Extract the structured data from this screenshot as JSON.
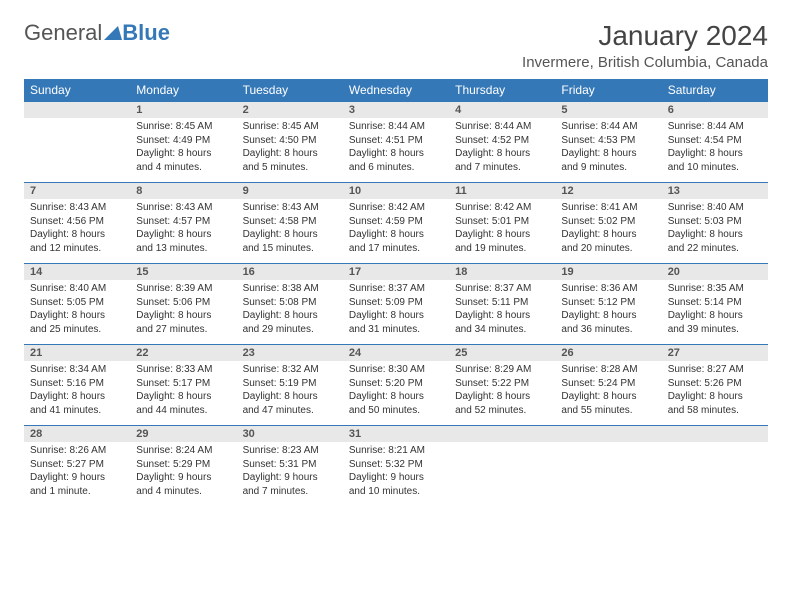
{
  "brand": {
    "part1": "General",
    "part2": "Blue"
  },
  "title": "January 2024",
  "location": "Invermere, British Columbia, Canada",
  "colors": {
    "accent": "#3478b8",
    "header_bg": "#3478b8",
    "daynum_bg": "#e8e8e8",
    "text": "#333333",
    "page_bg": "#ffffff"
  },
  "day_headers": [
    "Sunday",
    "Monday",
    "Tuesday",
    "Wednesday",
    "Thursday",
    "Friday",
    "Saturday"
  ],
  "weeks": [
    {
      "nums": [
        "",
        "1",
        "2",
        "3",
        "4",
        "5",
        "6"
      ],
      "cells": [
        null,
        {
          "sunrise": "Sunrise: 8:45 AM",
          "sunset": "Sunset: 4:49 PM",
          "daylight1": "Daylight: 8 hours",
          "daylight2": "and 4 minutes."
        },
        {
          "sunrise": "Sunrise: 8:45 AM",
          "sunset": "Sunset: 4:50 PM",
          "daylight1": "Daylight: 8 hours",
          "daylight2": "and 5 minutes."
        },
        {
          "sunrise": "Sunrise: 8:44 AM",
          "sunset": "Sunset: 4:51 PM",
          "daylight1": "Daylight: 8 hours",
          "daylight2": "and 6 minutes."
        },
        {
          "sunrise": "Sunrise: 8:44 AM",
          "sunset": "Sunset: 4:52 PM",
          "daylight1": "Daylight: 8 hours",
          "daylight2": "and 7 minutes."
        },
        {
          "sunrise": "Sunrise: 8:44 AM",
          "sunset": "Sunset: 4:53 PM",
          "daylight1": "Daylight: 8 hours",
          "daylight2": "and 9 minutes."
        },
        {
          "sunrise": "Sunrise: 8:44 AM",
          "sunset": "Sunset: 4:54 PM",
          "daylight1": "Daylight: 8 hours",
          "daylight2": "and 10 minutes."
        }
      ]
    },
    {
      "nums": [
        "7",
        "8",
        "9",
        "10",
        "11",
        "12",
        "13"
      ],
      "cells": [
        {
          "sunrise": "Sunrise: 8:43 AM",
          "sunset": "Sunset: 4:56 PM",
          "daylight1": "Daylight: 8 hours",
          "daylight2": "and 12 minutes."
        },
        {
          "sunrise": "Sunrise: 8:43 AM",
          "sunset": "Sunset: 4:57 PM",
          "daylight1": "Daylight: 8 hours",
          "daylight2": "and 13 minutes."
        },
        {
          "sunrise": "Sunrise: 8:43 AM",
          "sunset": "Sunset: 4:58 PM",
          "daylight1": "Daylight: 8 hours",
          "daylight2": "and 15 minutes."
        },
        {
          "sunrise": "Sunrise: 8:42 AM",
          "sunset": "Sunset: 4:59 PM",
          "daylight1": "Daylight: 8 hours",
          "daylight2": "and 17 minutes."
        },
        {
          "sunrise": "Sunrise: 8:42 AM",
          "sunset": "Sunset: 5:01 PM",
          "daylight1": "Daylight: 8 hours",
          "daylight2": "and 19 minutes."
        },
        {
          "sunrise": "Sunrise: 8:41 AM",
          "sunset": "Sunset: 5:02 PM",
          "daylight1": "Daylight: 8 hours",
          "daylight2": "and 20 minutes."
        },
        {
          "sunrise": "Sunrise: 8:40 AM",
          "sunset": "Sunset: 5:03 PM",
          "daylight1": "Daylight: 8 hours",
          "daylight2": "and 22 minutes."
        }
      ]
    },
    {
      "nums": [
        "14",
        "15",
        "16",
        "17",
        "18",
        "19",
        "20"
      ],
      "cells": [
        {
          "sunrise": "Sunrise: 8:40 AM",
          "sunset": "Sunset: 5:05 PM",
          "daylight1": "Daylight: 8 hours",
          "daylight2": "and 25 minutes."
        },
        {
          "sunrise": "Sunrise: 8:39 AM",
          "sunset": "Sunset: 5:06 PM",
          "daylight1": "Daylight: 8 hours",
          "daylight2": "and 27 minutes."
        },
        {
          "sunrise": "Sunrise: 8:38 AM",
          "sunset": "Sunset: 5:08 PM",
          "daylight1": "Daylight: 8 hours",
          "daylight2": "and 29 minutes."
        },
        {
          "sunrise": "Sunrise: 8:37 AM",
          "sunset": "Sunset: 5:09 PM",
          "daylight1": "Daylight: 8 hours",
          "daylight2": "and 31 minutes."
        },
        {
          "sunrise": "Sunrise: 8:37 AM",
          "sunset": "Sunset: 5:11 PM",
          "daylight1": "Daylight: 8 hours",
          "daylight2": "and 34 minutes."
        },
        {
          "sunrise": "Sunrise: 8:36 AM",
          "sunset": "Sunset: 5:12 PM",
          "daylight1": "Daylight: 8 hours",
          "daylight2": "and 36 minutes."
        },
        {
          "sunrise": "Sunrise: 8:35 AM",
          "sunset": "Sunset: 5:14 PM",
          "daylight1": "Daylight: 8 hours",
          "daylight2": "and 39 minutes."
        }
      ]
    },
    {
      "nums": [
        "21",
        "22",
        "23",
        "24",
        "25",
        "26",
        "27"
      ],
      "cells": [
        {
          "sunrise": "Sunrise: 8:34 AM",
          "sunset": "Sunset: 5:16 PM",
          "daylight1": "Daylight: 8 hours",
          "daylight2": "and 41 minutes."
        },
        {
          "sunrise": "Sunrise: 8:33 AM",
          "sunset": "Sunset: 5:17 PM",
          "daylight1": "Daylight: 8 hours",
          "daylight2": "and 44 minutes."
        },
        {
          "sunrise": "Sunrise: 8:32 AM",
          "sunset": "Sunset: 5:19 PM",
          "daylight1": "Daylight: 8 hours",
          "daylight2": "and 47 minutes."
        },
        {
          "sunrise": "Sunrise: 8:30 AM",
          "sunset": "Sunset: 5:20 PM",
          "daylight1": "Daylight: 8 hours",
          "daylight2": "and 50 minutes."
        },
        {
          "sunrise": "Sunrise: 8:29 AM",
          "sunset": "Sunset: 5:22 PM",
          "daylight1": "Daylight: 8 hours",
          "daylight2": "and 52 minutes."
        },
        {
          "sunrise": "Sunrise: 8:28 AM",
          "sunset": "Sunset: 5:24 PM",
          "daylight1": "Daylight: 8 hours",
          "daylight2": "and 55 minutes."
        },
        {
          "sunrise": "Sunrise: 8:27 AM",
          "sunset": "Sunset: 5:26 PM",
          "daylight1": "Daylight: 8 hours",
          "daylight2": "and 58 minutes."
        }
      ]
    },
    {
      "nums": [
        "28",
        "29",
        "30",
        "31",
        "",
        "",
        ""
      ],
      "cells": [
        {
          "sunrise": "Sunrise: 8:26 AM",
          "sunset": "Sunset: 5:27 PM",
          "daylight1": "Daylight: 9 hours",
          "daylight2": "and 1 minute."
        },
        {
          "sunrise": "Sunrise: 8:24 AM",
          "sunset": "Sunset: 5:29 PM",
          "daylight1": "Daylight: 9 hours",
          "daylight2": "and 4 minutes."
        },
        {
          "sunrise": "Sunrise: 8:23 AM",
          "sunset": "Sunset: 5:31 PM",
          "daylight1": "Daylight: 9 hours",
          "daylight2": "and 7 minutes."
        },
        {
          "sunrise": "Sunrise: 8:21 AM",
          "sunset": "Sunset: 5:32 PM",
          "daylight1": "Daylight: 9 hours",
          "daylight2": "and 10 minutes."
        },
        null,
        null,
        null
      ]
    }
  ]
}
